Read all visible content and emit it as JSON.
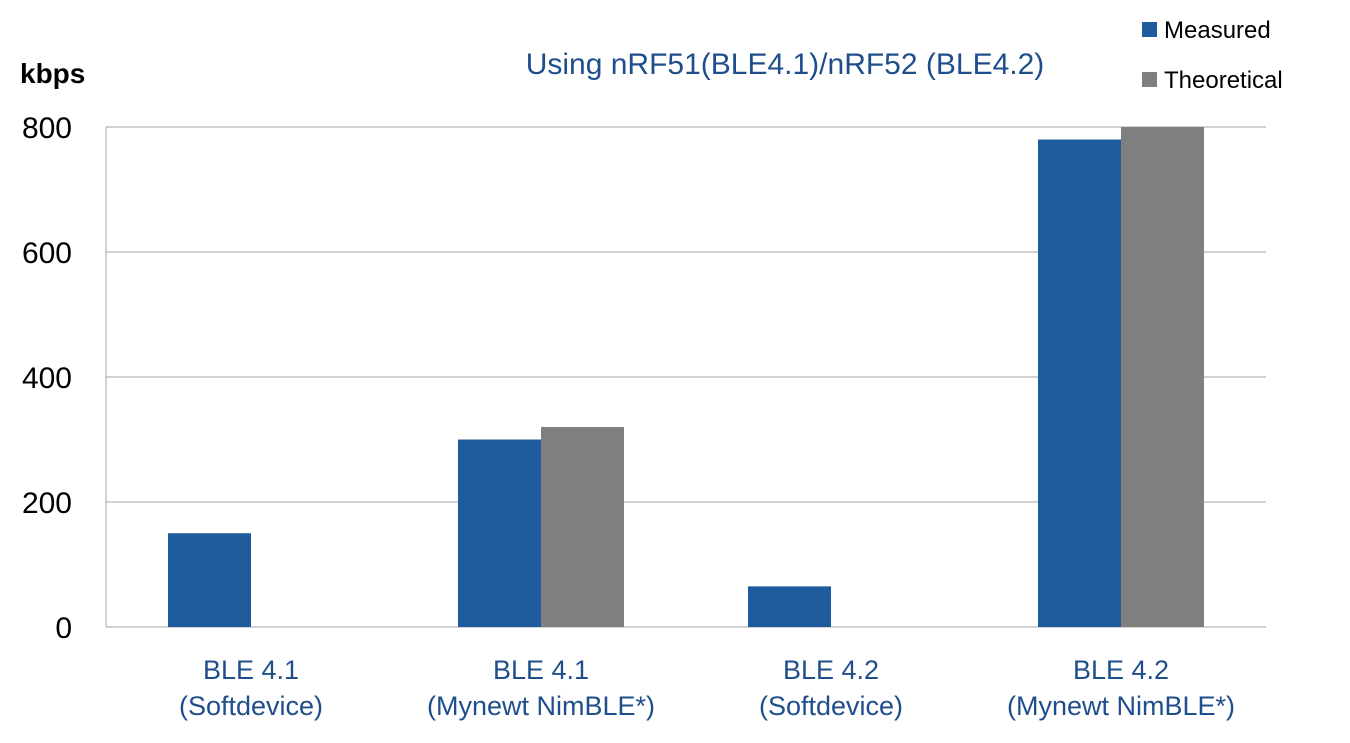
{
  "chart_data": {
    "type": "bar",
    "title": "Using nRF51(BLE4.1)/nRF52 (BLE4.2)",
    "xlabel": "",
    "ylabel": "kbps",
    "ylim": [
      0,
      800
    ],
    "yticks": [
      "0",
      "200",
      "400",
      "600",
      "800"
    ],
    "categories": [
      [
        "BLE 4.1",
        "(Softdevice)"
      ],
      [
        "BLE 4.1",
        "(Mynewt NimBLE*)"
      ],
      [
        "BLE 4.2",
        "(Softdevice)"
      ],
      [
        "BLE 4.2",
        "(Mynewt NimBLE*)"
      ]
    ],
    "series": [
      {
        "name": "Measured",
        "color": "#1f5c9e",
        "values": [
          150,
          300,
          65,
          780
        ]
      },
      {
        "name": "Theoretical",
        "color": "#7f7f7f",
        "values": [
          null,
          320,
          null,
          800
        ]
      }
    ],
    "legend": "top-right",
    "grid": true
  }
}
